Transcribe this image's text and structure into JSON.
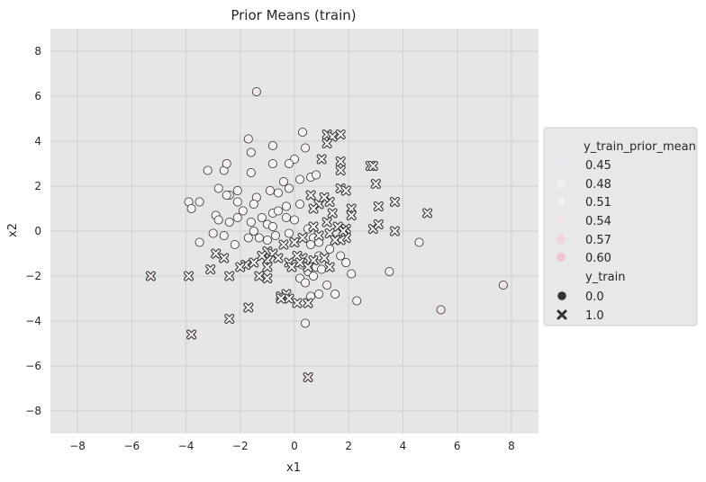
{
  "chart_data": {
    "type": "scatter",
    "title": "Prior Means (train)",
    "xlabel": "x1",
    "ylabel": "x2",
    "xlim": [
      -9,
      9
    ],
    "ylim": [
      -9,
      9
    ],
    "xticks": [
      -8,
      -6,
      -4,
      -2,
      0,
      2,
      4,
      6,
      8
    ],
    "yticks": [
      -8,
      -6,
      -4,
      -2,
      0,
      2,
      4,
      6,
      8
    ],
    "grid": true,
    "legend": {
      "placement": "right",
      "hue_title": "y_train_prior_mean",
      "hue_levels": [
        {
          "label": "0.45",
          "color": "#e8e8f0"
        },
        {
          "label": "0.48",
          "color": "#f1eef1"
        },
        {
          "label": "0.51",
          "color": "#f5eff1"
        },
        {
          "label": "0.54",
          "color": "#f4e3e8"
        },
        {
          "label": "0.57",
          "color": "#f1d4dd"
        },
        {
          "label": "0.60",
          "color": "#ecc4d2"
        }
      ],
      "style_title": "y_train",
      "style_levels": [
        {
          "label": "0.0",
          "marker": "circle"
        },
        {
          "label": "1.0",
          "marker": "x"
        }
      ]
    },
    "series": [
      {
        "name": "0.0",
        "marker": "circle",
        "points": [
          [
            -1.4,
            6.2
          ],
          [
            -1.7,
            4.1
          ],
          [
            0.3,
            4.4
          ],
          [
            -3.2,
            2.7
          ],
          [
            -2.6,
            2.7
          ],
          [
            -1.6,
            2.6
          ],
          [
            -2.5,
            3.0
          ],
          [
            -1.6,
            3.5
          ],
          [
            -0.8,
            3.8
          ],
          [
            0.0,
            3.2
          ],
          [
            0.4,
            3.7
          ],
          [
            -0.2,
            3.0
          ],
          [
            -0.8,
            3.0
          ],
          [
            -2.8,
            1.9
          ],
          [
            -2.4,
            1.6
          ],
          [
            -2.1,
            1.8
          ],
          [
            -1.4,
            1.5
          ],
          [
            -0.9,
            1.8
          ],
          [
            -0.6,
            1.7
          ],
          [
            -0.4,
            2.2
          ],
          [
            -0.2,
            1.9
          ],
          [
            0.2,
            2.3
          ],
          [
            0.6,
            2.4
          ],
          [
            0.8,
            2.5
          ],
          [
            0.2,
            1.2
          ],
          [
            -0.3,
            1.1
          ],
          [
            -0.8,
            0.8
          ],
          [
            -3.9,
            1.3
          ],
          [
            -3.8,
            1.0
          ],
          [
            -3.5,
            1.3
          ],
          [
            -2.9,
            0.7
          ],
          [
            -2.8,
            0.5
          ],
          [
            -2.5,
            1.6
          ],
          [
            -2.1,
            1.3
          ],
          [
            -1.9,
            0.9
          ],
          [
            -1.5,
            1.2
          ],
          [
            -1.2,
            0.6
          ],
          [
            -1.0,
            0.3
          ],
          [
            -0.6,
            0.9
          ],
          [
            -0.3,
            0.6
          ],
          [
            0.0,
            0.5
          ],
          [
            -3.5,
            -0.5
          ],
          [
            -3.0,
            -0.1
          ],
          [
            -2.6,
            -0.2
          ],
          [
            -2.2,
            -0.6
          ],
          [
            -2.4,
            0.4
          ],
          [
            -2.1,
            0.6
          ],
          [
            -1.6,
            0.4
          ],
          [
            -1.5,
            0.0
          ],
          [
            -1.3,
            -0.3
          ],
          [
            -1.0,
            -0.4
          ],
          [
            -0.7,
            -0.2
          ],
          [
            -0.2,
            -0.1
          ],
          [
            -1.7,
            -0.3
          ],
          [
            -0.8,
            0.2
          ],
          [
            0.5,
            0.1
          ],
          [
            0.7,
            -0.3
          ],
          [
            0.9,
            -0.5
          ],
          [
            0.6,
            -0.6
          ],
          [
            1.3,
            -0.8
          ],
          [
            1.7,
            -1.1
          ],
          [
            1.9,
            -1.4
          ],
          [
            0.9,
            -1.1
          ],
          [
            0.8,
            -1.6
          ],
          [
            0.5,
            -1.8
          ],
          [
            0.3,
            -1.5
          ],
          [
            0.2,
            -2.1
          ],
          [
            0.4,
            -2.3
          ],
          [
            0.7,
            -2.0
          ],
          [
            1.0,
            -1.7
          ],
          [
            1.2,
            -2.4
          ],
          [
            1.5,
            -2.8
          ],
          [
            0.9,
            -2.8
          ],
          [
            0.6,
            -2.9
          ],
          [
            2.1,
            -1.9
          ],
          [
            2.3,
            -3.1
          ],
          [
            3.5,
            -1.8
          ],
          [
            4.6,
            -0.5
          ],
          [
            5.4,
            -3.5
          ],
          [
            7.7,
            -2.4
          ],
          [
            0.4,
            -4.1
          ]
        ]
      },
      {
        "name": "1.0",
        "marker": "x",
        "points": [
          [
            1.2,
            4.3
          ],
          [
            1.4,
            4.2
          ],
          [
            1.7,
            4.3
          ],
          [
            1.2,
            3.9
          ],
          [
            1.0,
            3.2
          ],
          [
            1.7,
            3.1
          ],
          [
            1.7,
            2.7
          ],
          [
            2.8,
            2.9
          ],
          [
            2.9,
            2.9
          ],
          [
            3.0,
            2.1
          ],
          [
            1.7,
            1.9
          ],
          [
            1.9,
            1.8
          ],
          [
            0.6,
            1.6
          ],
          [
            1.3,
            1.3
          ],
          [
            0.9,
            1.2
          ],
          [
            1.1,
            1.5
          ],
          [
            0.7,
            1.0
          ],
          [
            1.4,
            0.8
          ],
          [
            2.1,
            1.0
          ],
          [
            2.1,
            0.7
          ],
          [
            3.7,
            1.3
          ],
          [
            3.1,
            1.1
          ],
          [
            2.9,
            0.1
          ],
          [
            3.1,
            0.3
          ],
          [
            3.7,
            0.0
          ],
          [
            4.9,
            0.8
          ],
          [
            1.9,
            0.1
          ],
          [
            1.6,
            0.2
          ],
          [
            1.8,
            0.0
          ],
          [
            1.3,
            -0.1
          ],
          [
            0.9,
            -0.2
          ],
          [
            1.9,
            -0.3
          ],
          [
            1.2,
            0.4
          ],
          [
            1.7,
            -0.4
          ],
          [
            1.5,
            -0.4
          ],
          [
            0.7,
            0.2
          ],
          [
            0.3,
            -0.3
          ],
          [
            0.0,
            -0.5
          ],
          [
            -0.4,
            -0.6
          ],
          [
            -1.0,
            -0.9
          ],
          [
            -0.8,
            -1.0
          ],
          [
            -1.0,
            -1.3
          ],
          [
            -0.6,
            -1.2
          ],
          [
            -0.2,
            -1.4
          ],
          [
            -0.1,
            -1.6
          ],
          [
            0.3,
            -1.2
          ],
          [
            0.1,
            -1.1
          ],
          [
            -1.0,
            -1.6
          ],
          [
            -1.2,
            -1.1
          ],
          [
            -1.5,
            -1.4
          ],
          [
            -1.8,
            -1.5
          ],
          [
            -3.1,
            -1.7
          ],
          [
            -2.9,
            -1.0
          ],
          [
            -2.6,
            -1.2
          ],
          [
            -2.4,
            -2.0
          ],
          [
            -2.0,
            -1.6
          ],
          [
            -3.9,
            -2.0
          ],
          [
            -5.3,
            -2.0
          ],
          [
            -1.3,
            -2.0
          ],
          [
            -1.0,
            -2.1
          ],
          [
            0.7,
            -1.3
          ],
          [
            0.2,
            -1.4
          ],
          [
            0.5,
            -1.6
          ],
          [
            -0.5,
            -2.9
          ],
          [
            -0.3,
            -2.8
          ],
          [
            -0.2,
            -3.0
          ],
          [
            0.1,
            -3.2
          ],
          [
            0.5,
            -3.2
          ],
          [
            -0.5,
            -3.0
          ],
          [
            -2.4,
            -3.9
          ],
          [
            -1.7,
            -3.4
          ],
          [
            -3.8,
            -4.6
          ],
          [
            0.5,
            -6.5
          ],
          [
            1.1,
            -1.2
          ],
          [
            1.3,
            -1.6
          ]
        ]
      }
    ]
  }
}
